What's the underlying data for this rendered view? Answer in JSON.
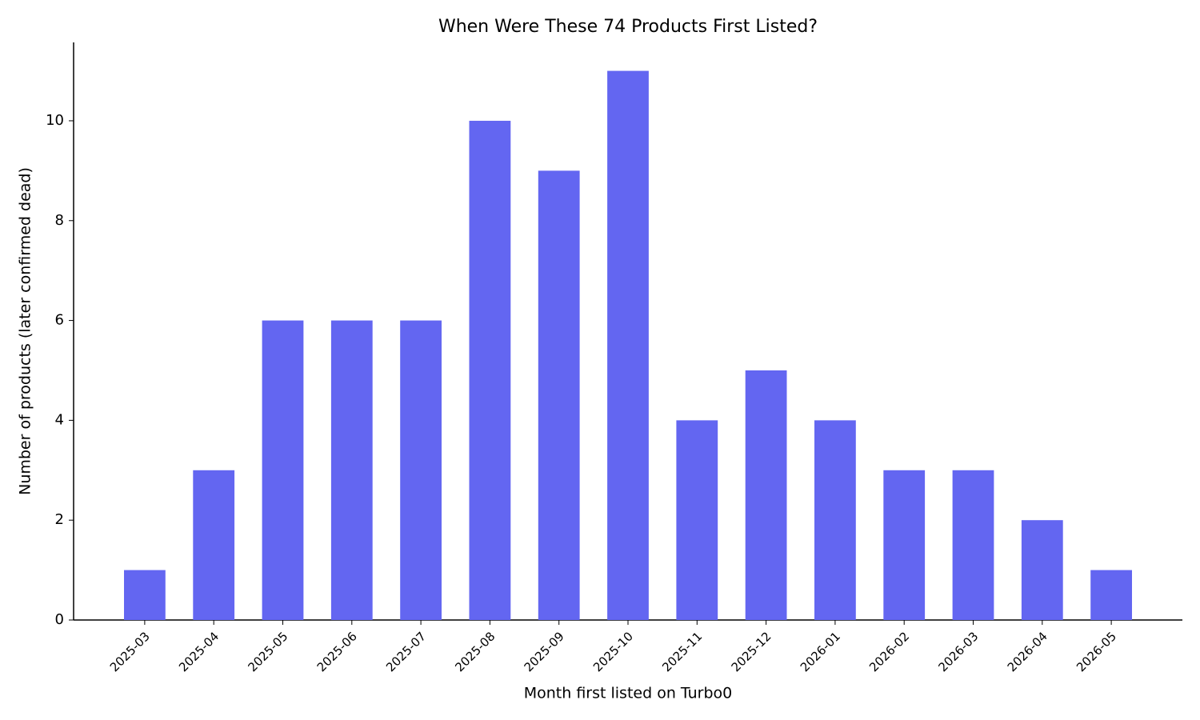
{
  "chart_data": {
    "type": "bar",
    "title": "When Were These 74 Products First Listed?",
    "x_label": "Month first listed on Turbo0",
    "y_label": "Number of products (later confirmed dead)",
    "categories": [
      "2025-03",
      "2025-04",
      "2025-05",
      "2025-06",
      "2025-07",
      "2025-08",
      "2025-09",
      "2025-10",
      "2025-11",
      "2025-12",
      "2026-01",
      "2026-02",
      "2026-03",
      "2026-04",
      "2026-05"
    ],
    "values": [
      1,
      3,
      6,
      6,
      6,
      10,
      9,
      11,
      4,
      5,
      4,
      3,
      3,
      2,
      1
    ],
    "color": "#6366f1",
    "ylim": [
      0,
      11.57
    ],
    "yticks": [
      0,
      2,
      4,
      6,
      8,
      10
    ],
    "grid": false
  }
}
